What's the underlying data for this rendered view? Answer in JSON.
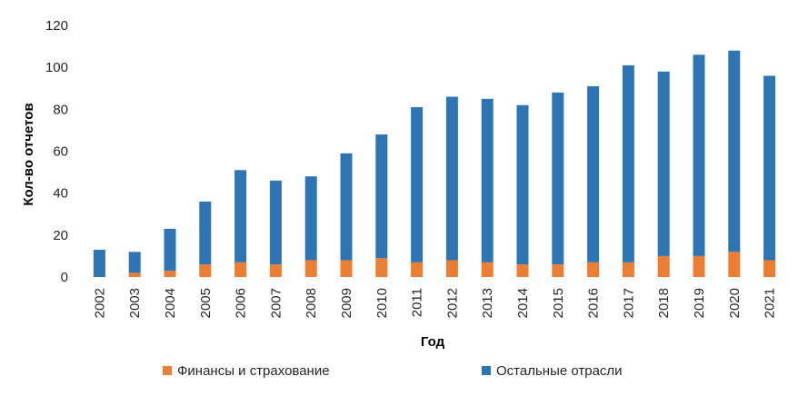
{
  "chart_data": {
    "type": "bar",
    "stacked": true,
    "title": "",
    "xlabel": "Год",
    "ylabel": "Кол-во отчетов",
    "ylim": [
      0,
      120
    ],
    "yticks": [
      0,
      20,
      40,
      60,
      80,
      100,
      120
    ],
    "grid": false,
    "legend_position": "bottom",
    "categories": [
      "2002",
      "2003",
      "2004",
      "2005",
      "2006",
      "2007",
      "2008",
      "2009",
      "2010",
      "2011",
      "2012",
      "2013",
      "2014",
      "2015",
      "2016",
      "2017",
      "2018",
      "2019",
      "2020",
      "2021"
    ],
    "series": [
      {
        "name": "Финансы и страхование",
        "color": "#ED7D31",
        "values": [
          0,
          2,
          3,
          6,
          7,
          6,
          8,
          8,
          9,
          7,
          8,
          7,
          6,
          6,
          7,
          7,
          10,
          10,
          12,
          8
        ]
      },
      {
        "name": "Остальные отрасли",
        "color": "#2E75B6",
        "values": [
          13,
          10,
          20,
          30,
          44,
          40,
          40,
          51,
          59,
          74,
          78,
          78,
          76,
          82,
          84,
          94,
          88,
          96,
          96,
          88
        ]
      }
    ]
  }
}
